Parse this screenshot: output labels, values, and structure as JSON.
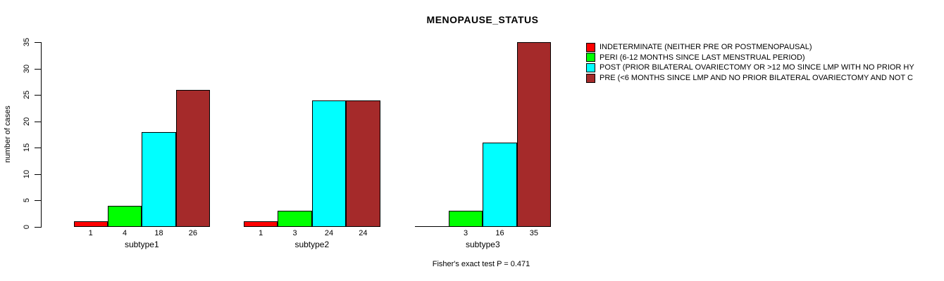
{
  "title": "MENOPAUSE_STATUS",
  "footnote": "Fisher's exact test P = 0.471",
  "chart_data": {
    "type": "bar",
    "title": "MENOPAUSE_STATUS",
    "xlabel": "",
    "ylabel": "number of cases",
    "categories": [
      "subtype1",
      "subtype2",
      "subtype3"
    ],
    "series": [
      {
        "name": "INDETERMINATE (NEITHER PRE OR POSTMENOPAUSAL)",
        "color": "#FF0000",
        "values": [
          1,
          1,
          0
        ]
      },
      {
        "name": "PERI (6-12 MONTHS SINCE LAST MENSTRUAL PERIOD)",
        "color": "#00FF00",
        "values": [
          4,
          3,
          3
        ]
      },
      {
        "name": "POST (PRIOR BILATERAL OVARIECTOMY OR >12 MO SINCE LMP WITH NO PRIOR HY",
        "color": "#00FFFF",
        "values": [
          18,
          24,
          16
        ]
      },
      {
        "name": "PRE (<6 MONTHS SINCE LMP AND NO PRIOR BILATERAL OVARIECTOMY AND NOT C",
        "color": "#A52A2A",
        "values": [
          26,
          24,
          35
        ]
      }
    ],
    "bar_value_labels": [
      [
        "1",
        "4",
        "18",
        "26"
      ],
      [
        "1",
        "3",
        "24",
        "24"
      ],
      [
        "",
        "3",
        "16",
        "35"
      ]
    ],
    "ylim": [
      0,
      35
    ],
    "yticks": [
      0,
      5,
      10,
      15,
      20,
      25,
      30,
      35
    ],
    "grid": false,
    "legend_position": "right",
    "annotation": "Fisher's exact test P = 0.471"
  }
}
